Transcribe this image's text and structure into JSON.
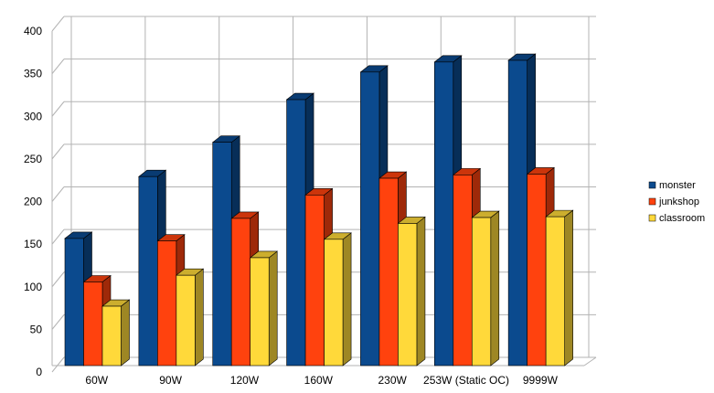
{
  "chart_data": {
    "type": "bar",
    "title": "",
    "xlabel": "",
    "ylabel": "",
    "categories": [
      "60W",
      "90W",
      "120W",
      "160W",
      "230W",
      "253W (Static OC)",
      "9999W"
    ],
    "series": [
      {
        "name": "monster",
        "values": [
          152,
          226,
          267,
          318,
          351,
          363,
          365
        ],
        "color": "#0b4a8e"
      },
      {
        "name": "junkshop",
        "values": [
          100,
          149,
          176,
          204,
          224,
          228,
          229
        ],
        "color": "#ff420e"
      },
      {
        "name": "classroom",
        "values": [
          71,
          108,
          129,
          151,
          170,
          177,
          178
        ],
        "color": "#ffd93a"
      }
    ],
    "ylim": [
      0,
      400
    ],
    "yticks": [
      "0",
      "50",
      "100",
      "150",
      "200",
      "250",
      "300",
      "350",
      "400"
    ],
    "grid": true,
    "legend_position": "right",
    "style": "3d-bars"
  }
}
